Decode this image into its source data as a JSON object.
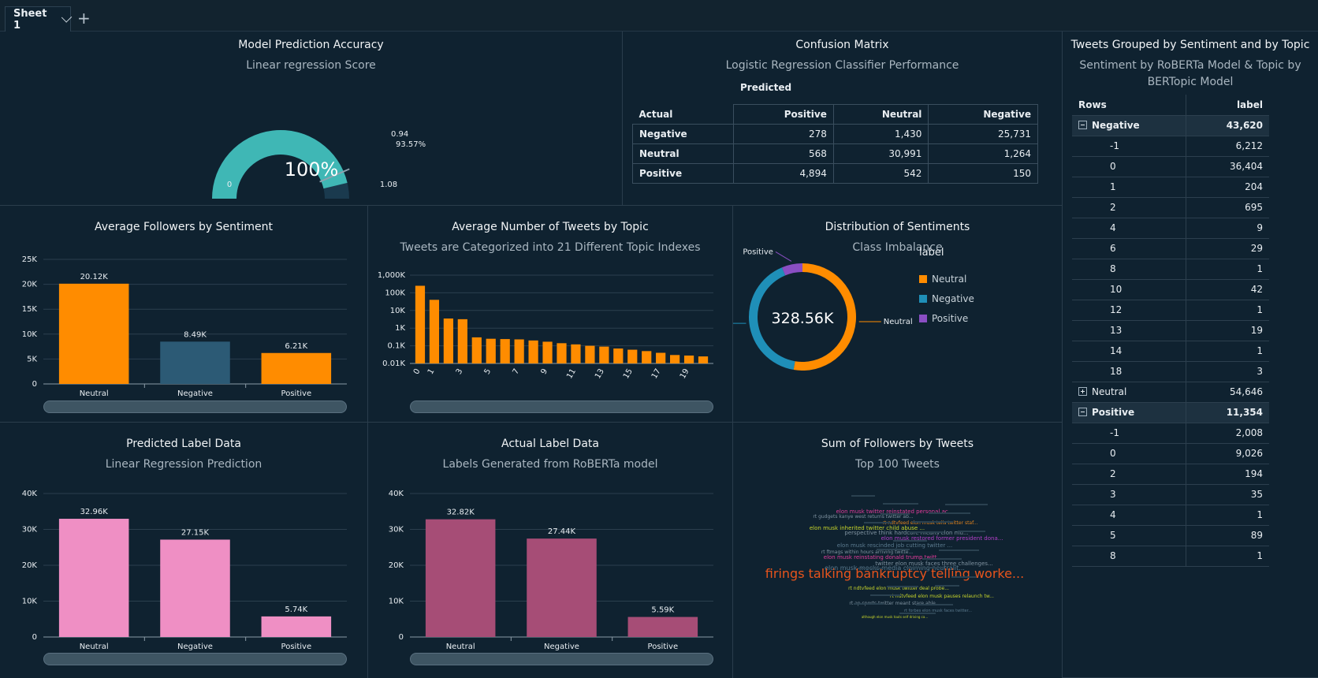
{
  "sheet_tab": {
    "label": "Sheet 1",
    "add_label": "+"
  },
  "gauge": {
    "title": "Model Prediction Accuracy",
    "subtitle": "Linear regression Score",
    "center_value": "100%",
    "min_label": "0",
    "max_label": "1.08",
    "target_label": "0.94",
    "target_pct_label": "93.57%",
    "value": 1.0,
    "target": 0.94,
    "max": 1.08,
    "colors": {
      "fill": "#3fb7b5",
      "track": "#1a3a4e"
    }
  },
  "confusion": {
    "title": "Confusion Matrix",
    "subtitle": "Logistic Regression Classifier Performance",
    "predicted_label": "Predicted",
    "actual_label": "Actual",
    "columns": [
      "Positive",
      "Neutral",
      "Negative"
    ],
    "rows": [
      {
        "label": "Negative",
        "values": [
          "278",
          "1,430",
          "25,731"
        ]
      },
      {
        "label": "Neutral",
        "values": [
          "568",
          "30,991",
          "1,264"
        ]
      },
      {
        "label": "Positive",
        "values": [
          "4,894",
          "542",
          "150"
        ]
      }
    ]
  },
  "pivot": {
    "title": "Tweets Grouped by Sentiment and by Topic",
    "subtitle_1": "Sentiment by RoBERTa Model & Topic by",
    "subtitle_2": "BERTopic Model",
    "rows_header": "Rows",
    "value_header": "label",
    "rows": [
      {
        "type": "group",
        "expanded": true,
        "label": "Negative",
        "value": "43,620"
      },
      {
        "type": "sub",
        "label": "-1",
        "value": "6,212"
      },
      {
        "type": "sub",
        "label": "0",
        "value": "36,404"
      },
      {
        "type": "sub",
        "label": "1",
        "value": "204"
      },
      {
        "type": "sub",
        "label": "2",
        "value": "695"
      },
      {
        "type": "sub",
        "label": "4",
        "value": "9"
      },
      {
        "type": "sub",
        "label": "6",
        "value": "29"
      },
      {
        "type": "sub",
        "label": "8",
        "value": "1"
      },
      {
        "type": "sub",
        "label": "10",
        "value": "42"
      },
      {
        "type": "sub",
        "label": "12",
        "value": "1"
      },
      {
        "type": "sub",
        "label": "13",
        "value": "19"
      },
      {
        "type": "sub",
        "label": "14",
        "value": "1"
      },
      {
        "type": "sub",
        "label": "18",
        "value": "3"
      },
      {
        "type": "group",
        "expanded": false,
        "label": "Neutral",
        "value": "54,646"
      },
      {
        "type": "group",
        "expanded": true,
        "label": "Positive",
        "value": "11,354"
      },
      {
        "type": "sub",
        "label": "-1",
        "value": "2,008"
      },
      {
        "type": "sub",
        "label": "0",
        "value": "9,026"
      },
      {
        "type": "sub",
        "label": "2",
        "value": "194"
      },
      {
        "type": "sub",
        "label": "3",
        "value": "35"
      },
      {
        "type": "sub",
        "label": "4",
        "value": "1"
      },
      {
        "type": "sub",
        "label": "5",
        "value": "89"
      },
      {
        "type": "sub",
        "label": "8",
        "value": "1"
      }
    ]
  },
  "followers": {
    "title": "Average Followers by Sentiment",
    "subtitle": ""
  },
  "topics": {
    "title": "Average Number of Tweets by Topic",
    "subtitle": "Tweets are Categorized into 21 Different Topic Indexes"
  },
  "distribution": {
    "title": "Distribution of Sentiments",
    "subtitle": "Class Imbalance",
    "center_value": "328.56K",
    "legend_title": "label"
  },
  "predicted": {
    "title": "Predicted Label Data",
    "subtitle": "Linear Regression Prediction"
  },
  "actual": {
    "title": "Actual Label Data",
    "subtitle": "Labels Generated from RoBERTa model"
  },
  "wordcloud": {
    "title": "Sum of Followers by Tweets",
    "subtitle": "Top 100 Tweets",
    "words": [
      {
        "text": "elon musk twitter reinstated personal ac...",
        "color": "#e23c9b",
        "size": 7
      },
      {
        "text": "rt gudgets kanye west returns twitter ab...",
        "color": "#7f92a0",
        "size": 6
      },
      {
        "text": "rt ndtvfeed elon musk tells twitter staf...",
        "color": "#e0831e",
        "size": 6
      },
      {
        "text": "elon musk inherited twitter child abuse ...",
        "color": "#c8d62a",
        "size": 7
      },
      {
        "text": "perspective think hardcore means elon mu...",
        "color": "#7f92a0",
        "size": 7
      },
      {
        "text": "elon musk restored former president dona...",
        "color": "#b43fc9",
        "size": 7
      },
      {
        "text": "elon musk rescinded job cutting twitter ...",
        "color": "#5b7a8e",
        "size": 7
      },
      {
        "text": "rt ftmags within hours arriving twitte...",
        "color": "#7f92a0",
        "size": 6
      },
      {
        "text": "elon musk reinstating donald trump twitt...",
        "color": "#e23c9b",
        "size": 7
      },
      {
        "text": "twitter elon musk faces three challenges...",
        "color": "#7f92a0",
        "size": 7
      },
      {
        "text": "elon musk mocks media claiming neutralit...",
        "color": "#5b7a8e",
        "size": 8
      },
      {
        "text": "firings talking bankruptcy telling worke...",
        "color": "#e8541c",
        "size": 16
      },
      {
        "text": "rt ndtvfeed elon musk twitter deal probe...",
        "color": "#c8d62a",
        "size": 6
      },
      {
        "text": "rt ndtvfeed elon musk pauses relaunch tw...",
        "color": "#c8d62a",
        "size": 6
      },
      {
        "text": "rt ap sports twitter meant stare able...",
        "color": "#7f92a0",
        "size": 6
      },
      {
        "text": "rt forbes elon musk faces twitter...",
        "color": "#5b7a8e",
        "size": 5
      },
      {
        "text": "although elon musk touts self driving ca...",
        "color": "#c8d62a",
        "size": 4
      }
    ]
  },
  "chart_data": [
    {
      "type": "bar",
      "title": "Average Followers by Sentiment",
      "categories": [
        "Neutral",
        "Negative",
        "Positive"
      ],
      "values": [
        20120,
        8490,
        6210
      ],
      "data_labels": [
        "20.12K",
        "8.49K",
        "6.21K"
      ],
      "colors": [
        "#ff8c00",
        "#2c5a75",
        "#ff8c00"
      ],
      "y_ticks": [
        "0",
        "5K",
        "10K",
        "15K",
        "20K",
        "25K"
      ],
      "ylim": [
        0,
        25000
      ]
    },
    {
      "type": "bar",
      "title": "Average Number of Tweets by Topic",
      "scale": "log",
      "categories": [
        "0",
        "1",
        "2",
        "3",
        "4",
        "5",
        "6",
        "7",
        "8",
        "9",
        "10",
        "11",
        "12",
        "13",
        "14",
        "15",
        "16",
        "17",
        "18",
        "19",
        "20"
      ],
      "values": [
        250000,
        40000,
        3500,
        3200,
        300,
        250,
        240,
        230,
        200,
        170,
        140,
        120,
        100,
        90,
        70,
        60,
        50,
        40,
        30,
        28,
        25
      ],
      "x_tick_labels": [
        "0",
        "1",
        "3",
        "5",
        "7",
        "9",
        "11",
        "13",
        "15",
        "17",
        "19"
      ],
      "y_ticks": [
        "0.01K",
        "0.1K",
        "1K",
        "10K",
        "100K",
        "1,000K"
      ],
      "ylim": [
        10,
        1000000
      ],
      "color": "#ff8c00"
    },
    {
      "type": "pie",
      "title": "Distribution of Sentiments",
      "donut": true,
      "labels": [
        "Neutral",
        "Negative",
        "Positive"
      ],
      "values": [
        173000,
        135000,
        20560
      ],
      "total_label": "328.56K",
      "colors": [
        "#ff8c00",
        "#1f8fb8",
        "#8a4ec3"
      ]
    },
    {
      "type": "bar",
      "title": "Predicted Label Data",
      "categories": [
        "Neutral",
        "Negative",
        "Positive"
      ],
      "values": [
        32960,
        27150,
        5740
      ],
      "data_labels": [
        "32.96K",
        "27.15K",
        "5.74K"
      ],
      "color": "#ef8fc4",
      "y_ticks": [
        "0",
        "10K",
        "20K",
        "30K",
        "40K"
      ],
      "ylim": [
        0,
        40000
      ]
    },
    {
      "type": "bar",
      "title": "Actual Label Data",
      "categories": [
        "Neutral",
        "Negative",
        "Positive"
      ],
      "values": [
        32820,
        27440,
        5590
      ],
      "data_labels": [
        "32.82K",
        "27.44K",
        "5.59K"
      ],
      "color": "#a64d76",
      "y_ticks": [
        "0",
        "10K",
        "20K",
        "30K",
        "40K"
      ],
      "ylim": [
        0,
        40000
      ]
    }
  ]
}
